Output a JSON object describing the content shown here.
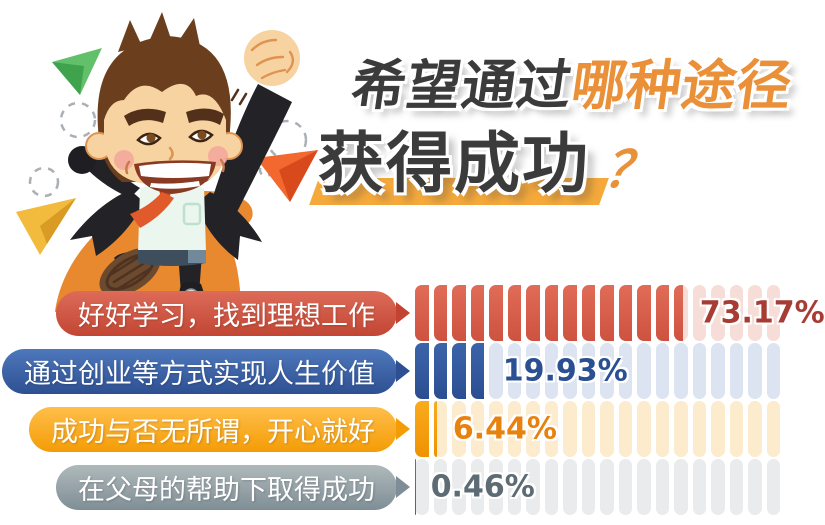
{
  "page": {
    "background": "#ffffff"
  },
  "title": {
    "line1_dark": "希望通过",
    "line1_accent": "哪种途径",
    "line2": "获得成功",
    "question_mark": "？",
    "dark_color": "#3B3B3B",
    "accent_color": "#EA9038",
    "underline_color": "#F5A93B"
  },
  "illustration": {
    "name": "jumping-businessman-cartoon",
    "description": "Cartoon businessman in black suit jumping with raised fist, paper airplanes and dashed doodle clouds",
    "colors": {
      "skin": "#F7D3A2",
      "hair": "#6B3F1D",
      "suit": "#232327",
      "shirt": "#EAF6EE",
      "tie": "#E05A2B",
      "swoosh": "#E8882F",
      "plane_green": "#56BA5B",
      "plane_yellow": "#F2BB3D",
      "plane_orange": "#F2682F",
      "doodle": "#ABB0B6"
    }
  },
  "chart_data": {
    "type": "bar",
    "title": "希望通过哪种途径获得成功？",
    "unit": "%",
    "segments_total": 20,
    "segment_value": 5,
    "legend_position": "none",
    "grid": false,
    "categories": [
      "好好学习，找到理想工作",
      "通过创业等方式实现人生价值",
      "成功与否无所谓，开心就好",
      "在父母的帮助下取得成功"
    ],
    "values": [
      73.17,
      19.93,
      6.44,
      0.46
    ],
    "rows": [
      {
        "label": "好好学习，找到理想工作",
        "value": 73.17,
        "value_label": "73.17%",
        "colors": {
          "label_from": "#DD6B58",
          "label_to": "#C24634",
          "arrow": "#C24330",
          "fill_from": "#E06C57",
          "fill_to": "#CE5240",
          "track": "#F6DDD8",
          "pct": "#A63C33"
        }
      },
      {
        "label": "通过创业等方式实现人生价值",
        "value": 19.93,
        "value_label": "19.93%",
        "colors": {
          "label_from": "#4E78BC",
          "label_to": "#2E5092",
          "arrow": "#2E5092",
          "fill_from": "#3C64AA",
          "fill_to": "#2B4E92",
          "track": "#DCE3F1",
          "pct": "#2B4F93"
        }
      },
      {
        "label": "成功与否无所谓，开心就好",
        "value": 6.44,
        "value_label": "6.44%",
        "colors": {
          "label_from": "#FFBE4A",
          "label_to": "#F49C06",
          "arrow": "#F49C06",
          "fill_from": "#F9AB1E",
          "fill_to": "#EF9202",
          "track": "#FCEBCD",
          "pct": "#E8820E"
        }
      },
      {
        "label": "在父母的帮助下取得成功",
        "value": 0.46,
        "value_label": "0.46%",
        "colors": {
          "label_from": "#AFB9BB",
          "label_to": "#7F8E96",
          "arrow": "#7F8E96",
          "fill_from": "#64737D",
          "fill_to": "#53646E",
          "track": "#E9EBEC",
          "pct": "#5C6B74"
        }
      }
    ]
  }
}
